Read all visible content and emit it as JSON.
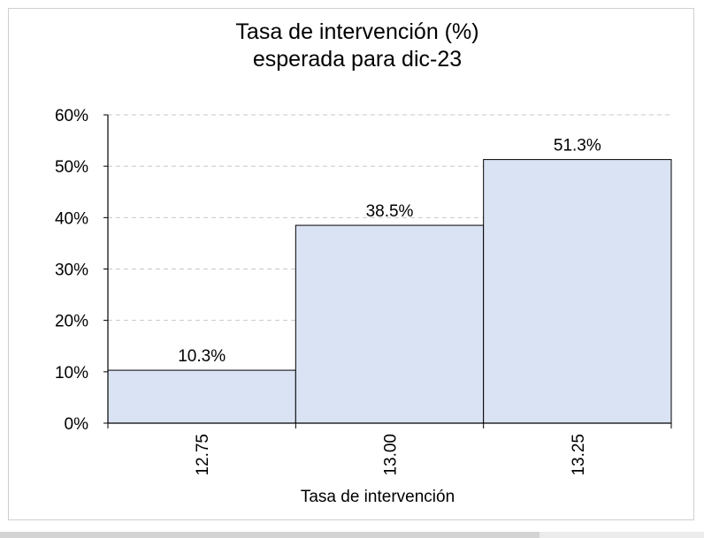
{
  "chart_data": {
    "type": "bar",
    "title_lines": [
      "Tasa de intervención (%)",
      "esperada para dic-23"
    ],
    "xlabel": "Tasa de intervención",
    "ylabel": "",
    "categories": [
      "12.75",
      "13.00",
      "13.25"
    ],
    "values": [
      10.3,
      38.5,
      51.3
    ],
    "data_labels": [
      "10.3%",
      "38.5%",
      "51.3%"
    ],
    "ylim": [
      0,
      60
    ],
    "yticks": [
      0,
      10,
      20,
      30,
      40,
      50,
      60
    ],
    "ytick_labels": [
      "0%",
      "10%",
      "20%",
      "30%",
      "40%",
      "50%",
      "60%"
    ],
    "grid": "horizontal dashed",
    "bar_color": "#dae3f3",
    "bar_edge_color": "#000000"
  }
}
